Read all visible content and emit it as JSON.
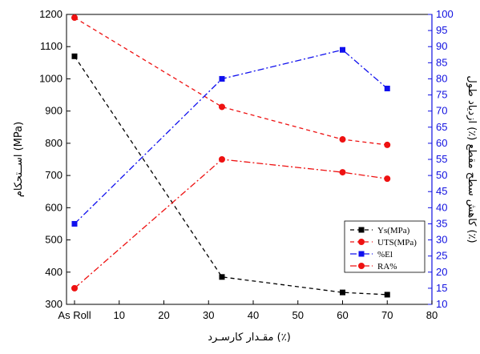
{
  "chart_data": {
    "type": "line",
    "x_axis": {
      "label": "مقـدار کارسـرد (٪)",
      "ticks": [
        "As Roll",
        "10",
        "20",
        "30",
        "40",
        "50",
        "60",
        "70",
        "80"
      ],
      "range": [
        0,
        80
      ]
    },
    "y_left": {
      "label": "اســتحکام (MPa)",
      "range": [
        300,
        1200
      ],
      "ticks": [
        "300",
        "400",
        "500",
        "600",
        "700",
        "800",
        "900",
        "1000",
        "1100",
        "1200"
      ]
    },
    "y_right": {
      "label": "کاهش سطح مقطع (٪) ازدیاد طول (٪)",
      "range": [
        10,
        100
      ],
      "ticks": [
        "10",
        "15",
        "20",
        "25",
        "30",
        "35",
        "40",
        "45",
        "50",
        "55",
        "60",
        "65",
        "70",
        "75",
        "80",
        "85",
        "90",
        "95",
        "100"
      ],
      "color": "#1010e0"
    },
    "series": [
      {
        "name": "Ys(MPa)",
        "axis": "left",
        "color": "#000000",
        "marker": "square",
        "dash": "5,4",
        "x": [
          0,
          33,
          60,
          70
        ],
        "y": [
          1070,
          385,
          337,
          330
        ]
      },
      {
        "name": "UTS(MPa)",
        "axis": "left",
        "color": "#ee1111",
        "marker": "circle",
        "dash": "5,4",
        "x": [
          0,
          33,
          60,
          70
        ],
        "y": [
          1190,
          913,
          812,
          795
        ]
      },
      {
        "name": "%El",
        "axis": "right",
        "color": "#1010ee",
        "marker": "square",
        "dash": "8,3,2,3",
        "x": [
          0,
          33,
          60,
          70
        ],
        "y": [
          35,
          80,
          89,
          77
        ]
      },
      {
        "name": "RA%",
        "axis": "right",
        "color": "#ee1111",
        "marker": "circle",
        "dash": "8,3,2,3",
        "x": [
          0,
          33,
          60,
          70
        ],
        "y": [
          15,
          55,
          51,
          49
        ]
      }
    ],
    "legend_position": "lower-right",
    "grid": false
  }
}
